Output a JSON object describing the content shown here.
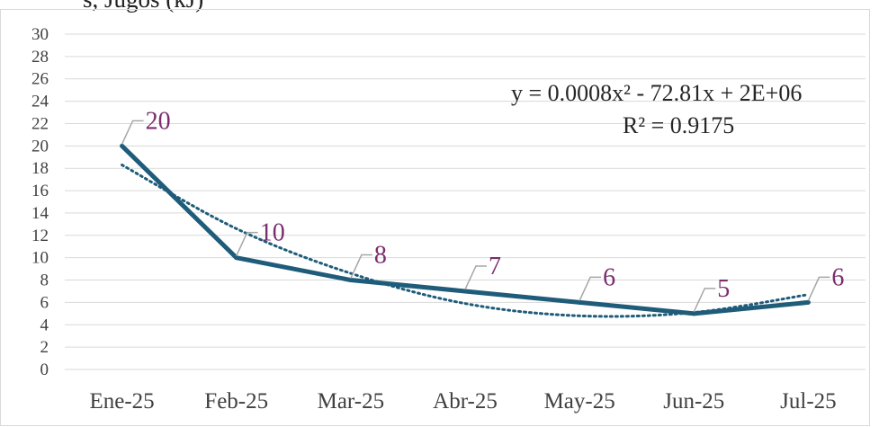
{
  "title_fragment": "s, Jugos (kJ)",
  "chart_data": {
    "type": "line",
    "categories": [
      "Ene-25",
      "Feb-25",
      "Mar-25",
      "Abr-25",
      "May-25",
      "Jun-25",
      "Jul-25"
    ],
    "series": [
      {
        "values": [
          20,
          10,
          8,
          7,
          6,
          5,
          6
        ]
      }
    ],
    "trendline": {
      "type": "polynomial",
      "order": 2,
      "equation": "y = 0.0008x² - 72.81x + 2E+06",
      "r_squared": "R² = 0.9175",
      "values": [
        18.3,
        12.6,
        8.6,
        5.9,
        4.8,
        5.1,
        6.7
      ]
    },
    "yticks": [
      "0",
      "2",
      "4",
      "6",
      "8",
      "10",
      "12",
      "14",
      "16",
      "18",
      "20",
      "22",
      "24",
      "26",
      "28",
      "30"
    ],
    "ylim": [
      0,
      30
    ],
    "grid": true,
    "data_labels": true,
    "colors": {
      "series": "#1f5c7a",
      "trendline": "#1f5c7a",
      "data_label": "#7b2d6e",
      "leader_line": "#a6a6a6",
      "grid": "#d9d9d9",
      "axis_text": "#404040",
      "equation_text": "#262626"
    }
  }
}
